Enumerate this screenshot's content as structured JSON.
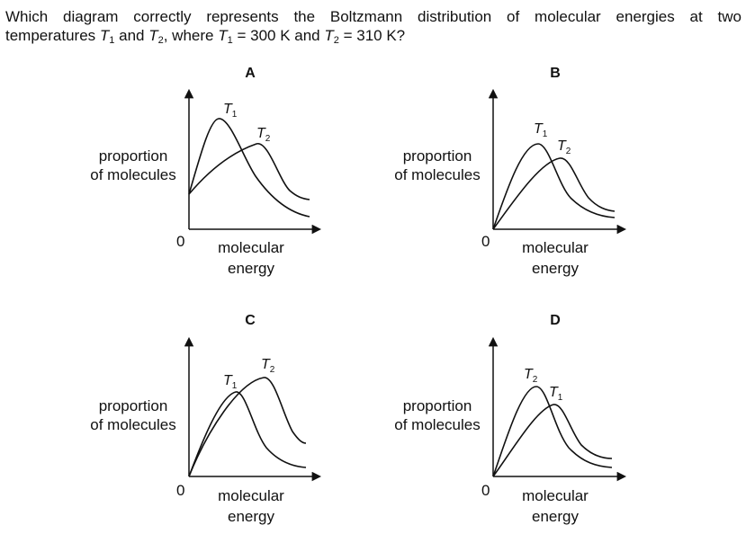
{
  "question": {
    "line1": "Which diagram correctly represents the Boltzmann distribution of molecular energies at two",
    "p1": "temperatures ",
    "t1_sym": "T",
    "t1_sub": "1",
    "p2": " and ",
    "t2_sym": "T",
    "t2_sub": "2",
    "p3": ", where ",
    "t1b_sym": "T",
    "t1b_sub": "1",
    "p4": " = 300 K and ",
    "t2b_sym": "T",
    "t2b_sub": "2",
    "p5": " = 310 K?"
  },
  "axis": {
    "ylabel_line1": "proportion",
    "ylabel_line2": "of molecules",
    "xlabel_line1": "molecular",
    "xlabel_line2": "energy",
    "origin": "0"
  },
  "curve_label": {
    "symbol": "T",
    "sub1": "1",
    "sub2": "2"
  },
  "options": [
    {
      "label": "A",
      "description": "T1 peak higher and to the left of T2; both curves start above zero"
    },
    {
      "label": "B",
      "description": "T1 peak higher and to the left of T2; both curves start at origin"
    },
    {
      "label": "C",
      "description": "T2 peak higher and to the right of T1; both curves start at origin"
    },
    {
      "label": "D",
      "description": "T2 peak higher and to the left of T1; both curves start at origin"
    }
  ]
}
